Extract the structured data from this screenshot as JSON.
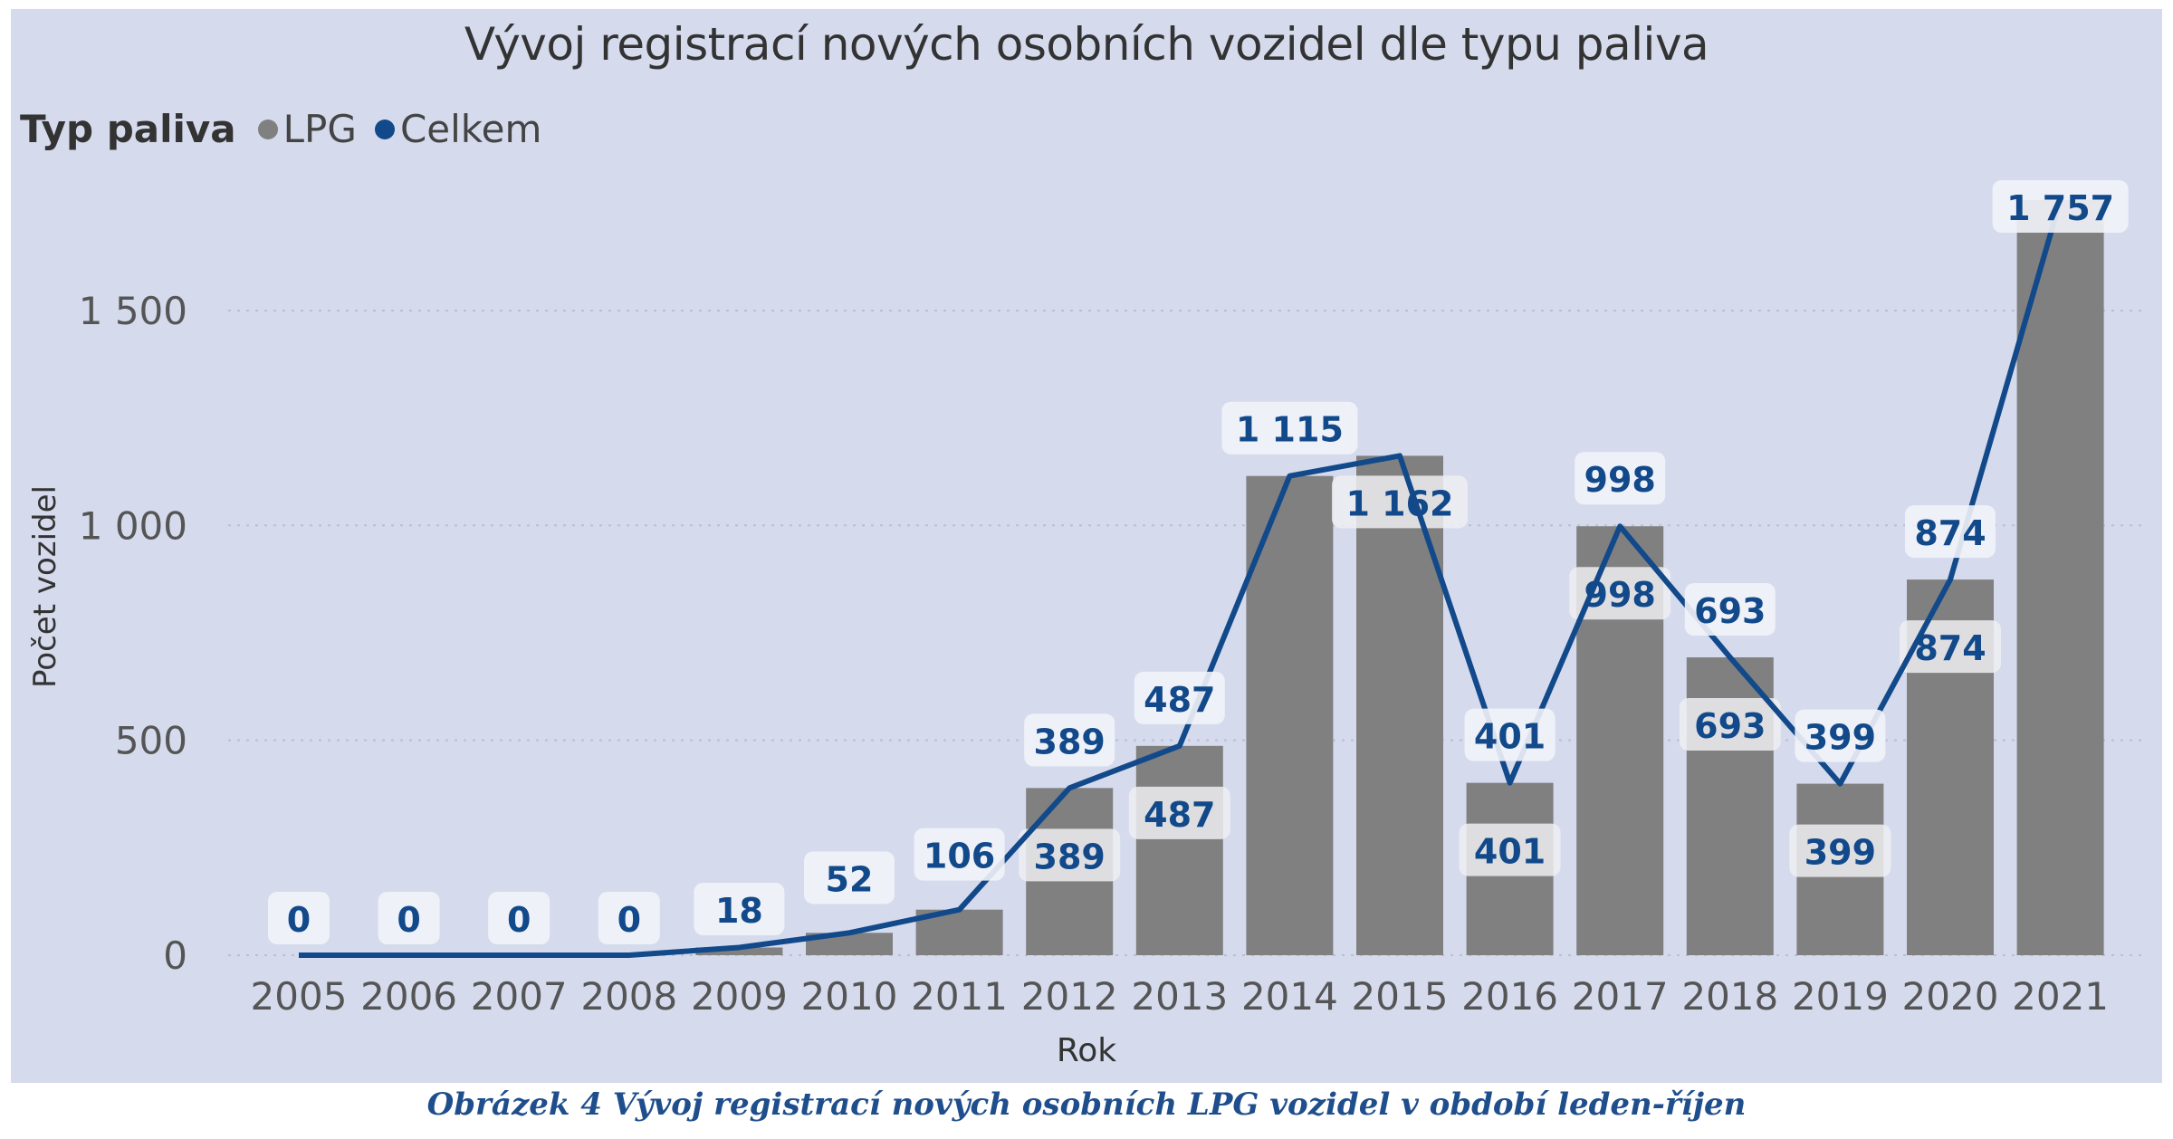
{
  "chart": {
    "title": "Vývoj registrací nových osobních vozidel dle typu paliva",
    "legend_title": "Typ paliva",
    "legend": [
      {
        "label": "LPG",
        "color": "#808080"
      },
      {
        "label": "Celkem",
        "color": "#12498a"
      }
    ],
    "ylabel": "Počet vozidel",
    "xlabel": "Rok",
    "yticks": [
      "0",
      "500",
      "1 000",
      "1 500"
    ]
  },
  "caption": "Obrázek 4 Vývoj registrací nových osobních LPG vozidel v období leden-říjen",
  "chart_data": {
    "type": "bar",
    "title": "Vývoj registrací nových osobních vozidel dle typu paliva",
    "xlabel": "Rok",
    "ylabel": "Počet vozidel",
    "categories": [
      "2005",
      "2006",
      "2007",
      "2008",
      "2009",
      "2010",
      "2011",
      "2012",
      "2013",
      "2014",
      "2015",
      "2016",
      "2017",
      "2018",
      "2019",
      "2020",
      "2021"
    ],
    "series": [
      {
        "name": "LPG",
        "type": "bar",
        "color": "#808080",
        "values": [
          0,
          0,
          0,
          0,
          18,
          52,
          106,
          389,
          487,
          1115,
          1162,
          401,
          998,
          693,
          399,
          874,
          1757
        ]
      },
      {
        "name": "Celkem",
        "type": "line",
        "color": "#12498a",
        "values": [
          0,
          0,
          0,
          0,
          18,
          52,
          106,
          389,
          487,
          1115,
          1162,
          401,
          998,
          693,
          399,
          874,
          1757
        ]
      }
    ],
    "data_labels": [
      "0",
      "0",
      "0",
      "0",
      "18",
      "52",
      "106",
      "389",
      "487",
      "1 115",
      "1 162",
      "401",
      "998",
      "693",
      "399",
      "874",
      "1 757"
    ],
    "ylim": [
      0,
      1800
    ],
    "yticks": [
      0,
      500,
      1000,
      1500
    ],
    "grid": true,
    "legend_position": "top-left"
  }
}
